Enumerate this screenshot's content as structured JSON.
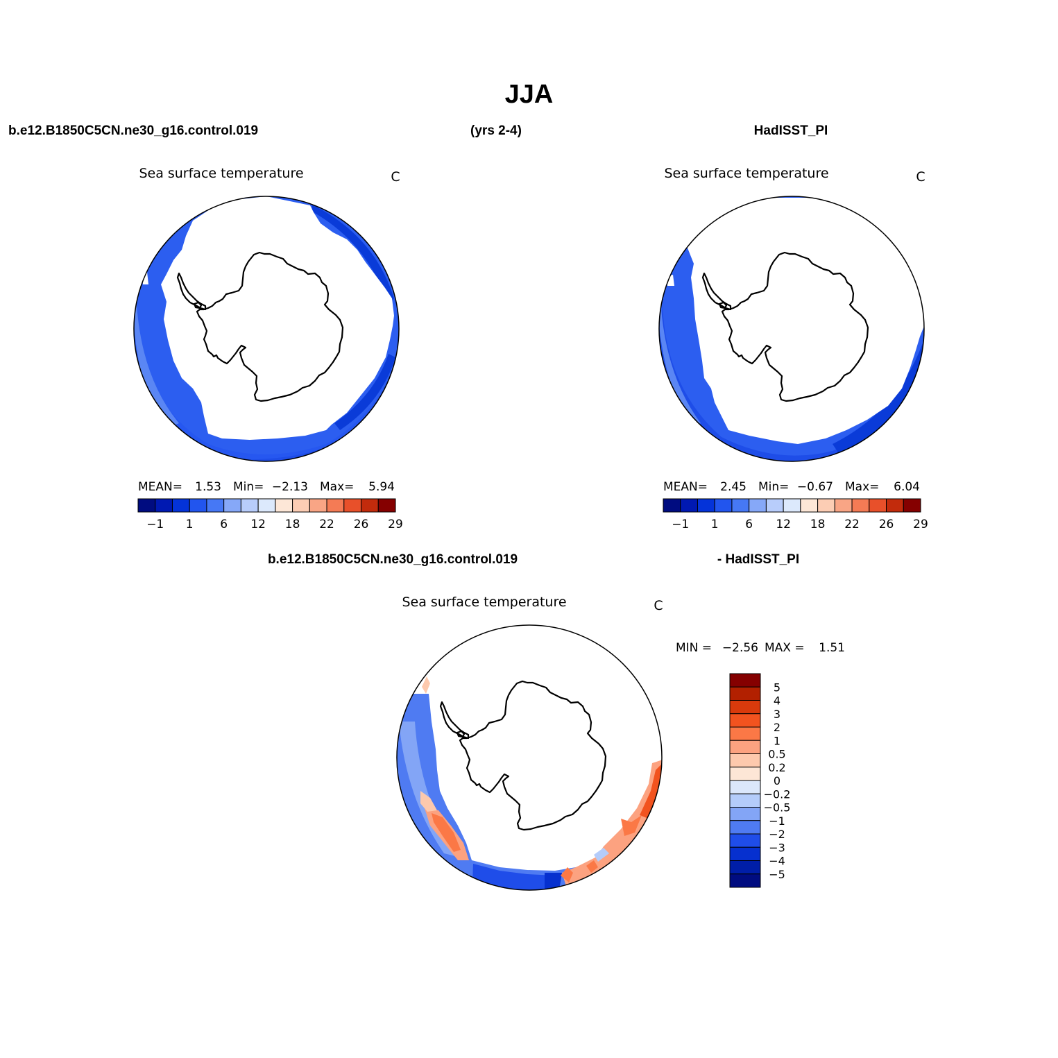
{
  "page": {
    "main_title": "JJA",
    "case_name": "b.e12.B1850C5CN.ne30_g16.control.019",
    "years": "(yrs 2-4)",
    "obs_name": "HadISST_PI",
    "diff_case_name": "b.e12.B1850C5CN.ne30_g16.control.019",
    "diff_obs_name": "- HadISST_PI"
  },
  "colors": {
    "ocean_base": "#2c5ef0",
    "outline": "#000000"
  },
  "chart_data": [
    {
      "type": "heatmap",
      "panel": "model",
      "title": "Sea surface temperature",
      "units": "C",
      "projection": "south polar stereographic",
      "stats": {
        "mean_label": "MEAN=",
        "mean": "1.53",
        "min_label": "Min=",
        "min": "−2.13",
        "max_label": "Max=",
        "max": "5.94"
      },
      "colorbar": {
        "orientation": "horizontal",
        "colors": [
          "#000c80",
          "#0019b2",
          "#0433d9",
          "#2255ee",
          "#4678f5",
          "#86a8f8",
          "#b8cdfb",
          "#dce9fc",
          "#fde7d7",
          "#fccdb4",
          "#f9a585",
          "#f47b55",
          "#e8502a",
          "#c22b0c",
          "#850000"
        ],
        "tick_labels": [
          "−1",
          "1",
          "6",
          "12",
          "18",
          "22",
          "26",
          "29"
        ]
      }
    },
    {
      "type": "heatmap",
      "panel": "observation",
      "title": "Sea surface temperature",
      "units": "C",
      "projection": "south polar stereographic",
      "stats": {
        "mean_label": "MEAN=",
        "mean": "2.45",
        "min_label": "Min=",
        "min": "−0.67",
        "max_label": "Max=",
        "max": "6.04"
      },
      "colorbar": {
        "orientation": "horizontal",
        "colors": [
          "#000c80",
          "#0019b2",
          "#0433d9",
          "#2255ee",
          "#4678f5",
          "#86a8f8",
          "#b8cdfb",
          "#dce9fc",
          "#fde7d7",
          "#fccdb4",
          "#f9a585",
          "#f47b55",
          "#e8502a",
          "#c22b0c",
          "#850000"
        ],
        "tick_labels": [
          "−1",
          "1",
          "6",
          "12",
          "18",
          "22",
          "26",
          "29"
        ]
      }
    },
    {
      "type": "heatmap",
      "panel": "difference",
      "title": "Sea surface temperature",
      "units": "C",
      "projection": "south polar stereographic",
      "stats": {
        "min_label": "MIN =",
        "min": "−2.56",
        "max_label": "MAX =",
        "max": "1.51"
      },
      "colorbar": {
        "orientation": "vertical",
        "colors_top_to_bottom": [
          "#850000",
          "#b22000",
          "#d93a0c",
          "#f2531f",
          "#fb7846",
          "#fca280",
          "#fdc9ad",
          "#fde6d6",
          "#dbe7fb",
          "#b4ccfa",
          "#83a5f6",
          "#4f7bf2",
          "#1f4de9",
          "#0630cf",
          "#001ea8",
          "#000c80"
        ],
        "tick_labels_top_to_bottom": [
          "5",
          "4",
          "3",
          "2",
          "1",
          "0.5",
          "0.2",
          "0",
          "−0.2",
          "−0.5",
          "−1",
          "−2",
          "−3",
          "−4",
          "−5"
        ]
      }
    }
  ]
}
